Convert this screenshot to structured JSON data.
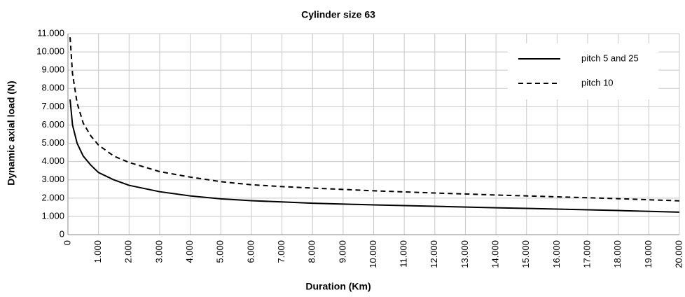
{
  "chart_data": {
    "type": "line",
    "title": "Cylinder size 63",
    "xlabel": "Duration (Km)",
    "ylabel": "Dynamic axial load (N)",
    "x": [
      70,
      150,
      300,
      500,
      750,
      1000,
      1500,
      2000,
      3000,
      4000,
      5000,
      6000,
      7000,
      8000,
      10000,
      12000,
      14000,
      16000,
      18000,
      20000
    ],
    "series": [
      {
        "name": "pitch 5 and 25",
        "color": "#000000",
        "dash": "solid",
        "values": [
          7400,
          6000,
          5000,
          4300,
          3800,
          3400,
          3000,
          2700,
          2350,
          2120,
          1960,
          1860,
          1790,
          1720,
          1630,
          1550,
          1470,
          1400,
          1320,
          1230
        ]
      },
      {
        "name": "pitch 10",
        "color": "#000000",
        "dash": "dashed",
        "values": [
          10800,
          8800,
          7200,
          6100,
          5400,
          4900,
          4300,
          3950,
          3450,
          3150,
          2900,
          2730,
          2630,
          2550,
          2400,
          2280,
          2170,
          2070,
          1970,
          1850
        ]
      }
    ],
    "xlim": [
      0,
      20000
    ],
    "xticks": [
      0,
      {
        "value": 1000,
        "label": "1.000"
      },
      {
        "value": 2000,
        "label": "2.000"
      },
      {
        "value": 3000,
        "label": "3.000"
      },
      {
        "value": 4000,
        "label": "4.000"
      },
      {
        "value": 5000,
        "label": "5.000"
      },
      {
        "value": 6000,
        "label": "6.000"
      },
      {
        "value": 7000,
        "label": "7.000"
      },
      {
        "value": 8000,
        "label": "8.000"
      },
      {
        "value": 9000,
        "label": "9.000"
      },
      {
        "value": 10000,
        "label": "10.000"
      },
      {
        "value": 11000,
        "label": "11.000"
      },
      {
        "value": 12000,
        "label": "12.000"
      },
      {
        "value": 13000,
        "label": "13.000"
      },
      {
        "value": 14000,
        "label": "14.000"
      },
      {
        "value": 15000,
        "label": "15.000"
      },
      {
        "value": 16000,
        "label": "16.000"
      },
      {
        "value": 17000,
        "label": "17.000"
      },
      {
        "value": 18000,
        "label": "18.000"
      },
      {
        "value": 19000,
        "label": "19.000"
      },
      {
        "value": 20000,
        "label": "20.000"
      }
    ],
    "ylim": [
      0,
      11000
    ],
    "yticks": [
      0,
      {
        "value": 1000,
        "label": "1.000"
      },
      {
        "value": 2000,
        "label": "2.000"
      },
      {
        "value": 3000,
        "label": "3.000"
      },
      {
        "value": 4000,
        "label": "4.000"
      },
      {
        "value": 5000,
        "label": "5.000"
      },
      {
        "value": 6000,
        "label": "6.000"
      },
      {
        "value": 7000,
        "label": "7.000"
      },
      {
        "value": 8000,
        "label": "8.000"
      },
      {
        "value": 9000,
        "label": "9.000"
      },
      {
        "value": 10000,
        "label": "10.000"
      },
      {
        "value": 11000,
        "label": "11.000"
      }
    ],
    "grid": true,
    "legend": "top-right"
  }
}
